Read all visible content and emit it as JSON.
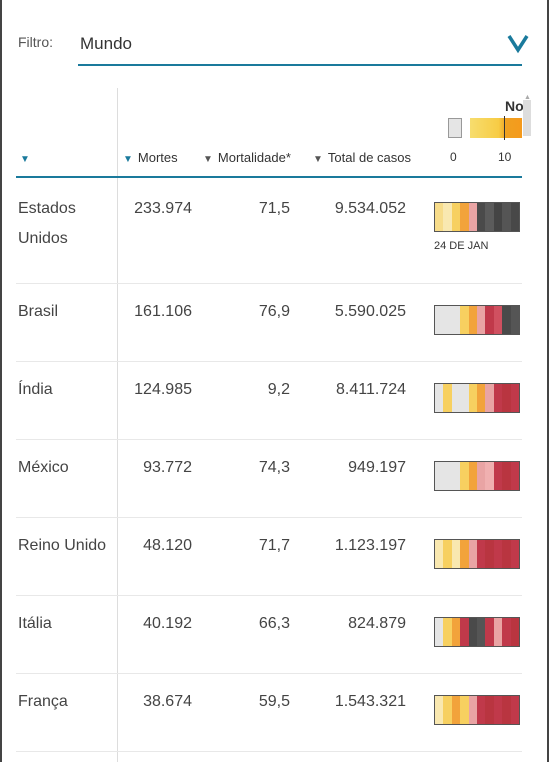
{
  "filter": {
    "label": "Filtro:",
    "value": "Mundo"
  },
  "columns": {
    "country": "",
    "deaths": "Mortes",
    "mortality": "Mortalidade*",
    "cases": "Total de casos"
  },
  "legend": {
    "min": "0",
    "max": "10",
    "tag": "No"
  },
  "colors": {
    "accent": "#1a7a9c"
  },
  "rows": [
    {
      "country": "Estados Unidos",
      "deaths": "233.974",
      "mortality": "71,5",
      "cases": "9.534.052",
      "date_label": "24 DE JAN",
      "strip": [
        "#f7dc8a",
        "#f9e8b0",
        "#f7d060",
        "#f2a33b",
        "#e9a4a4",
        "#4a4a4a",
        "#5b5b5b",
        "#444444",
        "#555555",
        "#484848"
      ]
    },
    {
      "country": "Brasil",
      "deaths": "161.106",
      "mortality": "76,9",
      "cases": "5.590.025",
      "strip": [
        "#e5e5e5",
        "#e5e5e5",
        "#e5e5e5",
        "#f7d060",
        "#f2a33b",
        "#e9a4a4",
        "#c0394a",
        "#d05060",
        "#4a4a4a",
        "#555555"
      ]
    },
    {
      "country": "Índia",
      "deaths": "124.985",
      "mortality": "9,2",
      "cases": "8.411.724",
      "strip": [
        "#e5e5e5",
        "#f7d060",
        "#e5e5e5",
        "#e5e5e5",
        "#f7d060",
        "#f2a33b",
        "#e9a4a4",
        "#c0394a",
        "#b93540",
        "#c0394a"
      ]
    },
    {
      "country": "México",
      "deaths": "93.772",
      "mortality": "74,3",
      "cases": "949.197",
      "strip": [
        "#e5e5e5",
        "#e5e5e5",
        "#e5e5e5",
        "#f7d060",
        "#f2a33b",
        "#e9a4a4",
        "#f0b0b0",
        "#c0394a",
        "#b93540",
        "#c0394a"
      ]
    },
    {
      "country": "Reino Unido",
      "deaths": "48.120",
      "mortality": "71,7",
      "cases": "1.123.197",
      "strip": [
        "#f9e8b0",
        "#f7d060",
        "#f9e8b0",
        "#f2a33b",
        "#e9a4a4",
        "#c0394a",
        "#b93540",
        "#c0394a",
        "#b93540",
        "#c0394a"
      ]
    },
    {
      "country": "Itália",
      "deaths": "40.192",
      "mortality": "66,3",
      "cases": "824.879",
      "strip": [
        "#e5e5e5",
        "#f7d060",
        "#f2a33b",
        "#c0394a",
        "#4a4a4a",
        "#555555",
        "#c0394a",
        "#e9a4a4",
        "#c0394a",
        "#b93540"
      ]
    },
    {
      "country": "França",
      "deaths": "38.674",
      "mortality": "59,5",
      "cases": "1.543.321",
      "strip": [
        "#f9e8b0",
        "#f7d060",
        "#f2a33b",
        "#f7d060",
        "#e9a4a4",
        "#c0394a",
        "#b93540",
        "#c0394a",
        "#b93540",
        "#c0394a"
      ]
    }
  ]
}
